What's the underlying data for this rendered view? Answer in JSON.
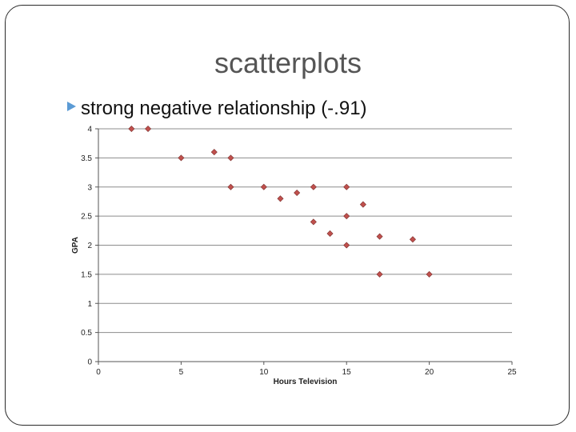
{
  "slide": {
    "title": "scatterplots",
    "bullet": "strong negative relationship (-.91)"
  },
  "chart_data": {
    "type": "scatter",
    "title": "",
    "xlabel": "Hours Television",
    "ylabel": "GPA",
    "xlim": [
      0,
      25
    ],
    "ylim": [
      0,
      4
    ],
    "xticks": [
      0,
      5,
      10,
      15,
      20,
      25
    ],
    "yticks": [
      0,
      0.5,
      1,
      1.5,
      2,
      2.5,
      3,
      3.5,
      4
    ],
    "grid": true,
    "legend": "none",
    "marker_color": "#c0504d",
    "points": [
      {
        "x": 2,
        "y": 4
      },
      {
        "x": 3,
        "y": 4
      },
      {
        "x": 5,
        "y": 3.5
      },
      {
        "x": 7,
        "y": 3.6
      },
      {
        "x": 8,
        "y": 3.5
      },
      {
        "x": 8,
        "y": 3
      },
      {
        "x": 10,
        "y": 3
      },
      {
        "x": 11,
        "y": 2.8
      },
      {
        "x": 12,
        "y": 2.9
      },
      {
        "x": 13,
        "y": 3
      },
      {
        "x": 13,
        "y": 2.4
      },
      {
        "x": 14,
        "y": 2.2
      },
      {
        "x": 15,
        "y": 3
      },
      {
        "x": 15,
        "y": 2.5
      },
      {
        "x": 15,
        "y": 2
      },
      {
        "x": 16,
        "y": 2.7
      },
      {
        "x": 17,
        "y": 2.15
      },
      {
        "x": 17,
        "y": 1.5
      },
      {
        "x": 19,
        "y": 2.1
      },
      {
        "x": 20,
        "y": 1.5
      }
    ]
  }
}
